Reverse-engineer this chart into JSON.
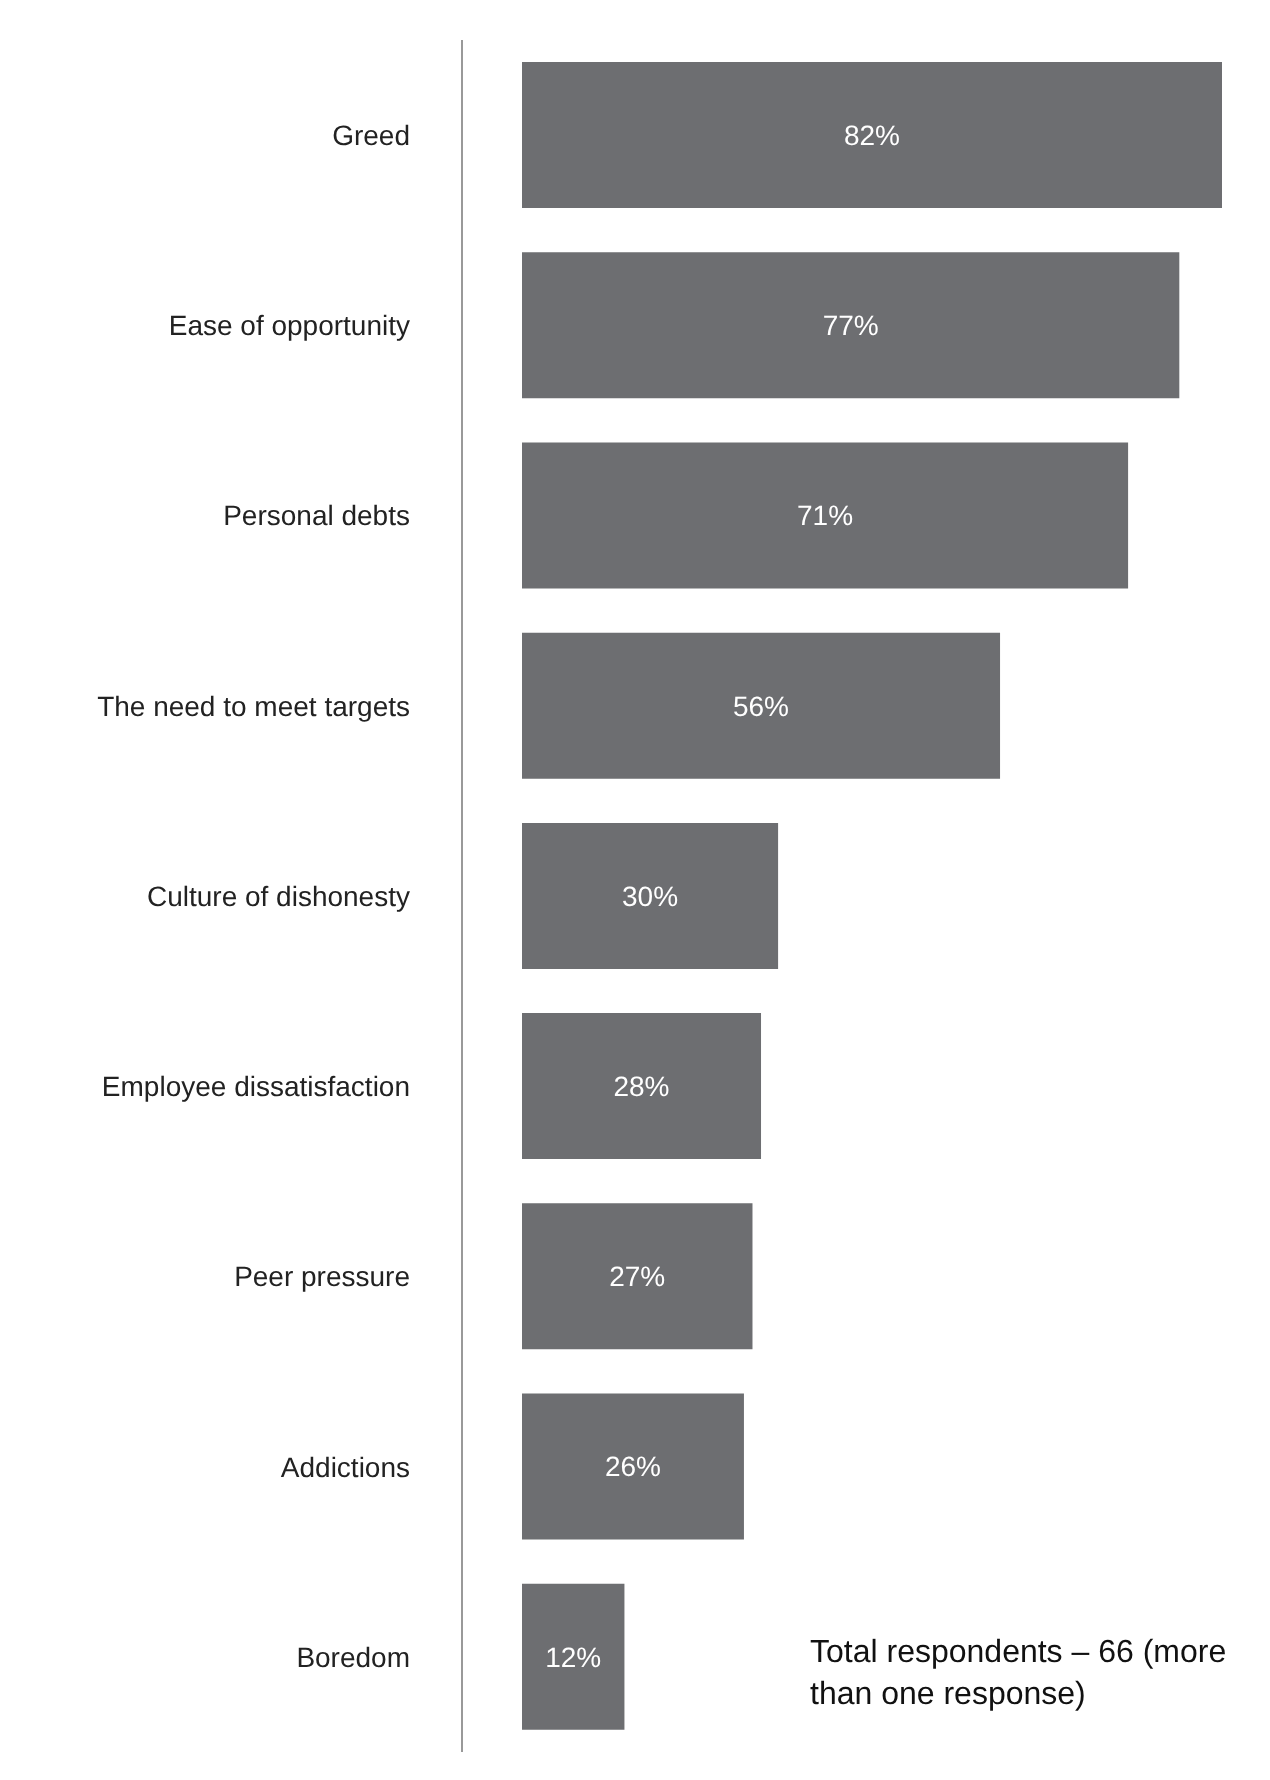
{
  "chart_data": {
    "type": "bar",
    "orientation": "horizontal",
    "categories": [
      "Greed",
      "Ease of opportunity",
      "Personal debts",
      "The need to meet targets",
      "Culture of dishonesty",
      "Employee dissatisfaction",
      "Peer pressure",
      "Addictions",
      "Boredom"
    ],
    "values": [
      82,
      77,
      71,
      56,
      30,
      28,
      27,
      26,
      12
    ],
    "color": "#6d6e71",
    "value_labels": [
      "82%",
      "77%",
      "71%",
      "56%",
      "30%",
      "28%",
      "27%",
      "26%",
      "12%"
    ],
    "annotations": [
      "Total respondents – 66 (more than one response)"
    ],
    "grid": false,
    "legend": false
  }
}
